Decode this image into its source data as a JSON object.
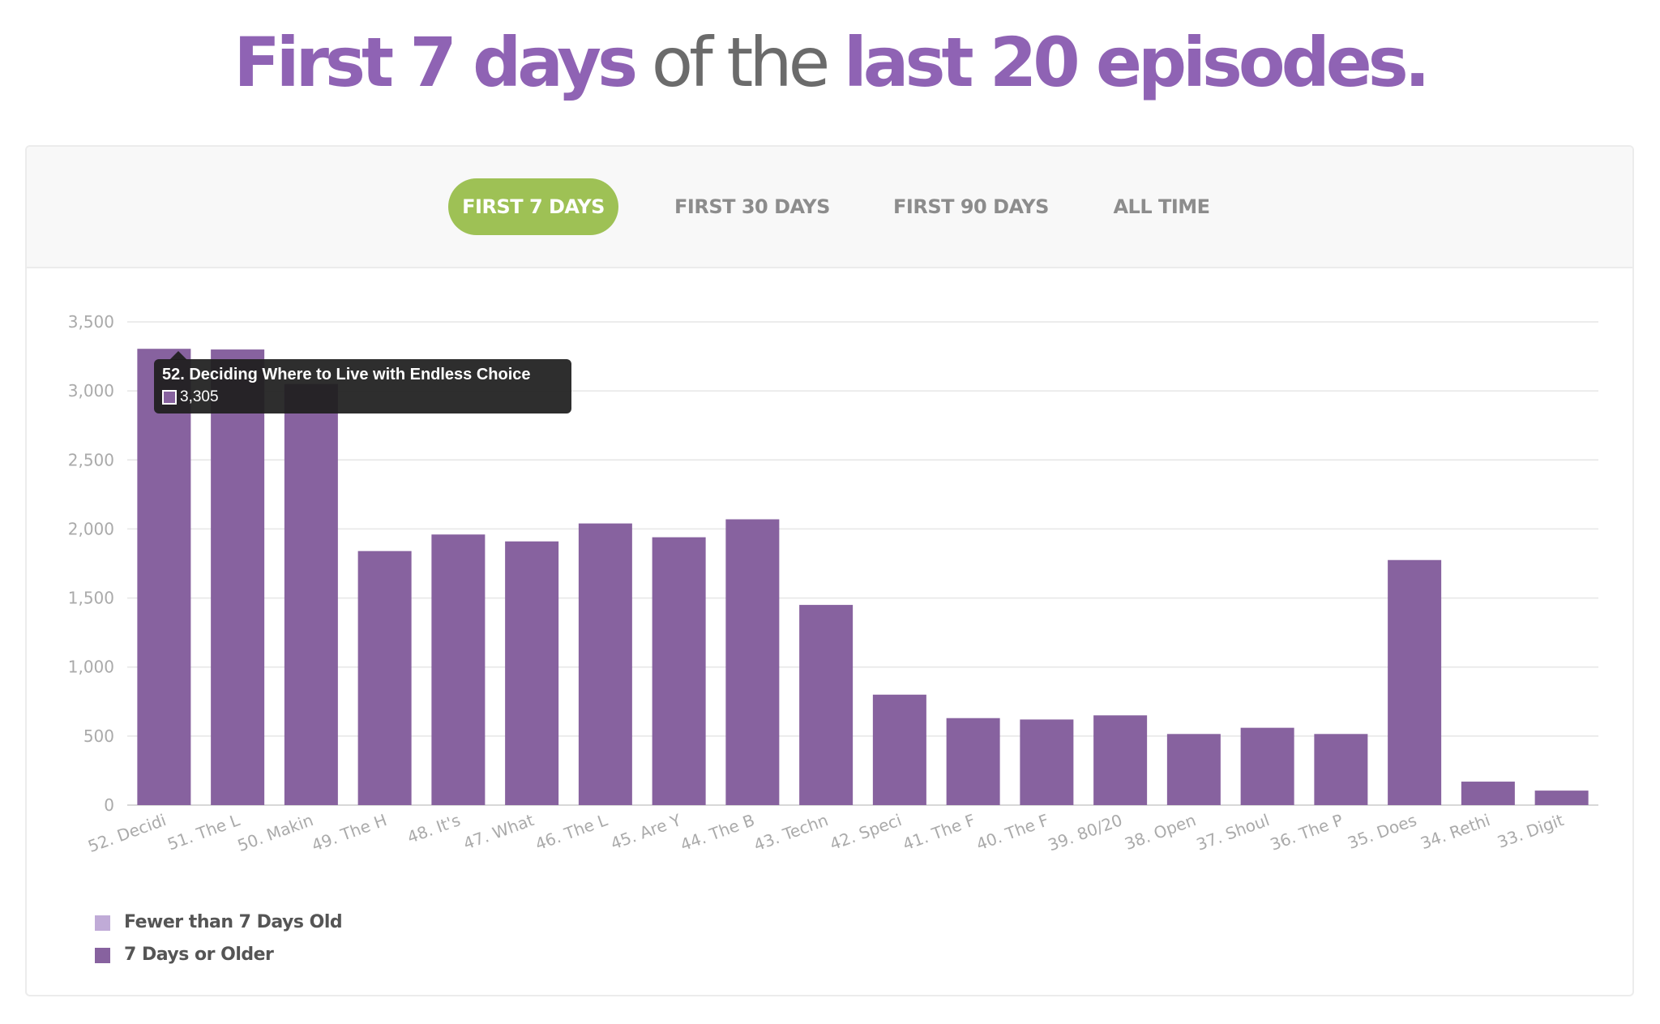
{
  "headline": {
    "part1": "First 7 days",
    "part2": " of the ",
    "part3": "last 20 episodes."
  },
  "tabs": [
    {
      "label": "FIRST 7 DAYS",
      "active": true
    },
    {
      "label": "FIRST 30 DAYS",
      "active": false
    },
    {
      "label": "FIRST 90 DAYS",
      "active": false
    },
    {
      "label": "ALL TIME",
      "active": false
    }
  ],
  "colors": {
    "accent": "#8f63b4",
    "bar": "#87629f",
    "bar_recent": "#c0abd7",
    "tab_active": "#9ec155",
    "grid": "#e6e6e6",
    "axis_text": "#aaaaaa"
  },
  "tooltip": {
    "title": "52. Deciding Where to Live with Endless Choice",
    "value": "3,305"
  },
  "chart_data": {
    "type": "bar",
    "stacked": true,
    "categories": [
      "52. Decidi",
      "51. The L",
      "50. Makin",
      "49. The H",
      "48. It's",
      "47. What",
      "46. The L",
      "45. Are Y",
      "44. The B",
      "43. Techn",
      "42. Speci",
      "41. The F",
      "40. The F",
      "39. 80/20",
      "38. Open",
      "37. Shoul",
      "36. The P",
      "35. Does",
      "34. Rethi",
      "33. Digit"
    ],
    "series": [
      {
        "name": "Fewer than 7 Days Old",
        "values": [
          0,
          0,
          0,
          0,
          0,
          0,
          0,
          0,
          0,
          0,
          0,
          0,
          0,
          0,
          0,
          0,
          0,
          0,
          0,
          0
        ]
      },
      {
        "name": "7 Days or Older",
        "values": [
          3305,
          3300,
          3050,
          1840,
          1960,
          1910,
          2040,
          1940,
          2070,
          1450,
          800,
          630,
          620,
          650,
          515,
          560,
          515,
          1775,
          170,
          105
        ]
      }
    ],
    "yticks": [
      "0",
      "500",
      "1,000",
      "1,500",
      "2,000",
      "2,500",
      "3,000",
      "3,500"
    ],
    "ylim": [
      0,
      3500
    ],
    "grid": true,
    "legend_position": "bottom-left"
  }
}
